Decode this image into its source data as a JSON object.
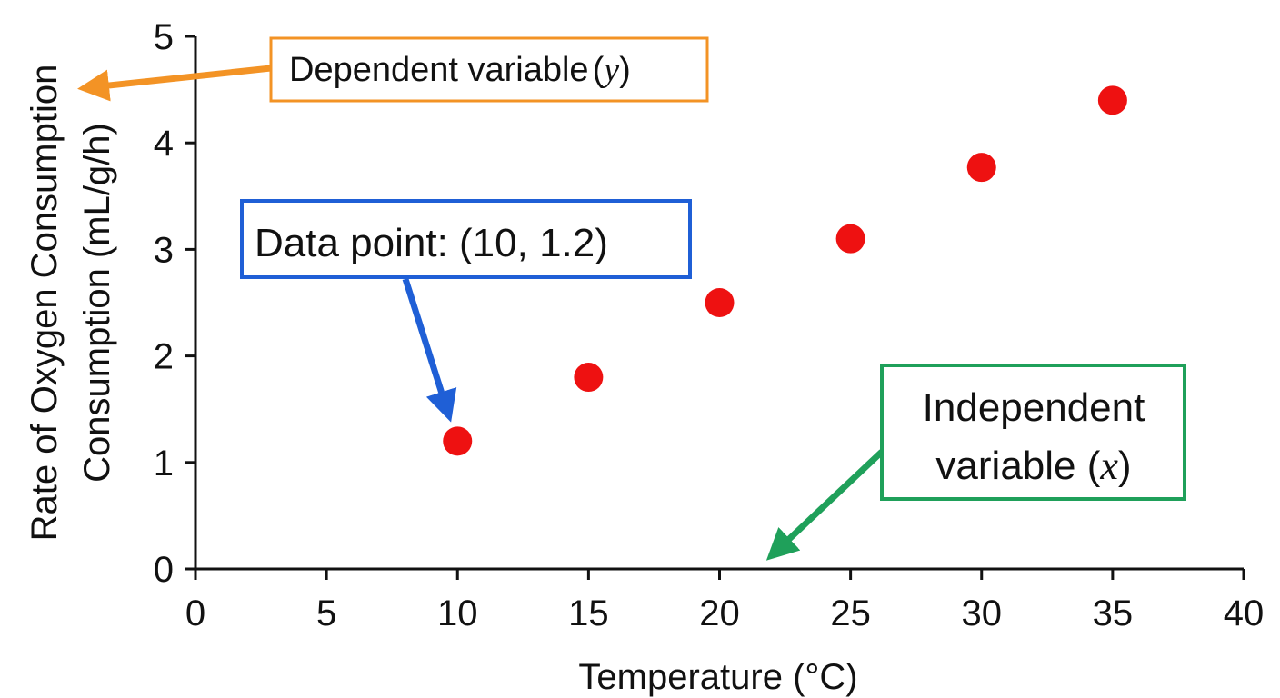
{
  "chart_data": {
    "type": "scatter",
    "title": "",
    "xlabel": "Temperature (°C)",
    "ylabel_lines": [
      "Rate of Oxygen Consumption",
      "Consumption (mL/g/h)"
    ],
    "xlim": [
      0,
      40
    ],
    "ylim": [
      0,
      5
    ],
    "x_ticks": [
      0,
      5,
      10,
      15,
      20,
      25,
      30,
      35,
      40
    ],
    "y_ticks": [
      0,
      1,
      2,
      3,
      4,
      5
    ],
    "grid": false,
    "point_color": "#ee1111",
    "points": [
      {
        "x": 10,
        "y": 1.2
      },
      {
        "x": 15,
        "y": 1.8
      },
      {
        "x": 20,
        "y": 2.5
      },
      {
        "x": 25,
        "y": 3.1
      },
      {
        "x": 30,
        "y": 3.77
      },
      {
        "x": 35,
        "y": 4.4
      }
    ]
  },
  "annotations": {
    "dependent": {
      "text": "Dependent variable",
      "var_open": "(",
      "var": "y",
      "var_close": ")",
      "color": "#f39325"
    },
    "data_point": {
      "text": "Data point: (10, 1.2)",
      "color": "#1f5fd6"
    },
    "independent": {
      "line1": "Independent",
      "line2": "variable (",
      "var": "x",
      "var_close": ")",
      "color": "#1fa05a"
    }
  }
}
